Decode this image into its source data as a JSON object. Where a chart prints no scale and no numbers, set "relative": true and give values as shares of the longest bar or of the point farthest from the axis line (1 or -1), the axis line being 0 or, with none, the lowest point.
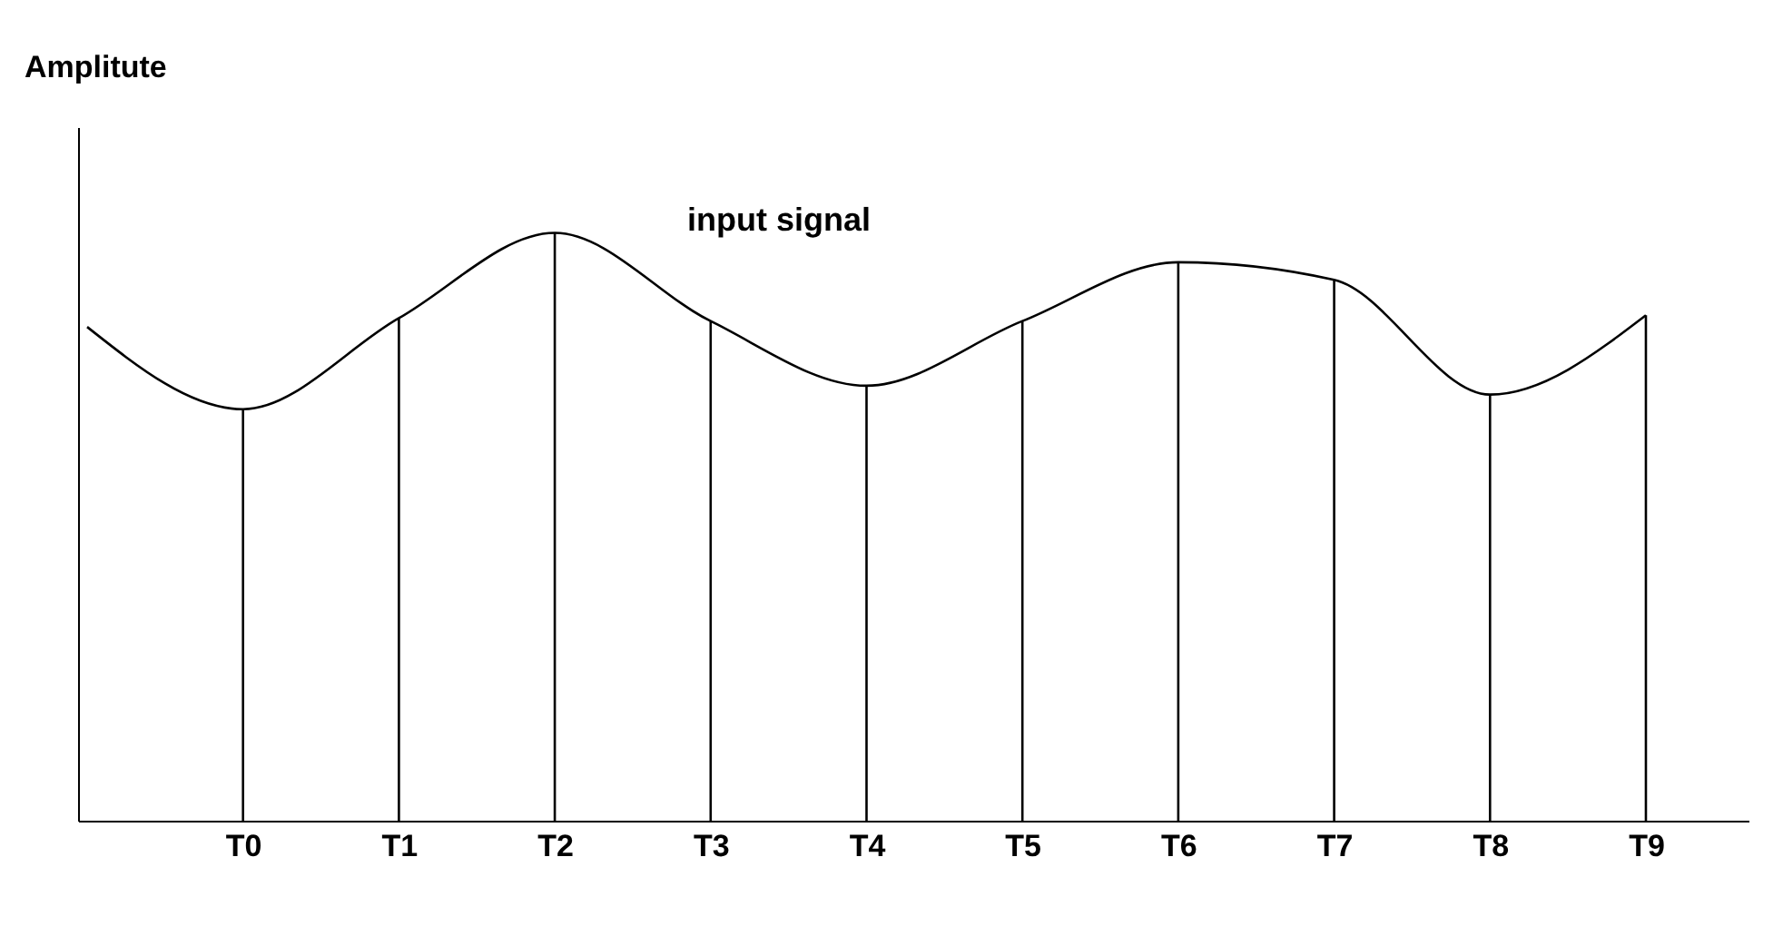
{
  "chart_data": {
    "type": "line",
    "relative": true,
    "ylabel": "Amplitute",
    "annotations": [
      "input signal"
    ],
    "categories": [
      null,
      "T0",
      "T1",
      "T2",
      "T3",
      "T4",
      "T5",
      "T6",
      "T7",
      "T8",
      "T9"
    ],
    "marker": "none",
    "series": [
      {
        "color": "#000000",
        "values": [
          0.84,
          0.7,
          0.855,
          1.0,
          0.85,
          0.74,
          0.85,
          0.95,
          0.92,
          0.725,
          0.86
        ]
      },
      {
        "type": "bar",
        "color": "#000000",
        "values": [
          null,
          0.7,
          0.855,
          1.0,
          0.85,
          0.74,
          0.85,
          0.95,
          0.92,
          0.725,
          0.86
        ]
      }
    ]
  }
}
